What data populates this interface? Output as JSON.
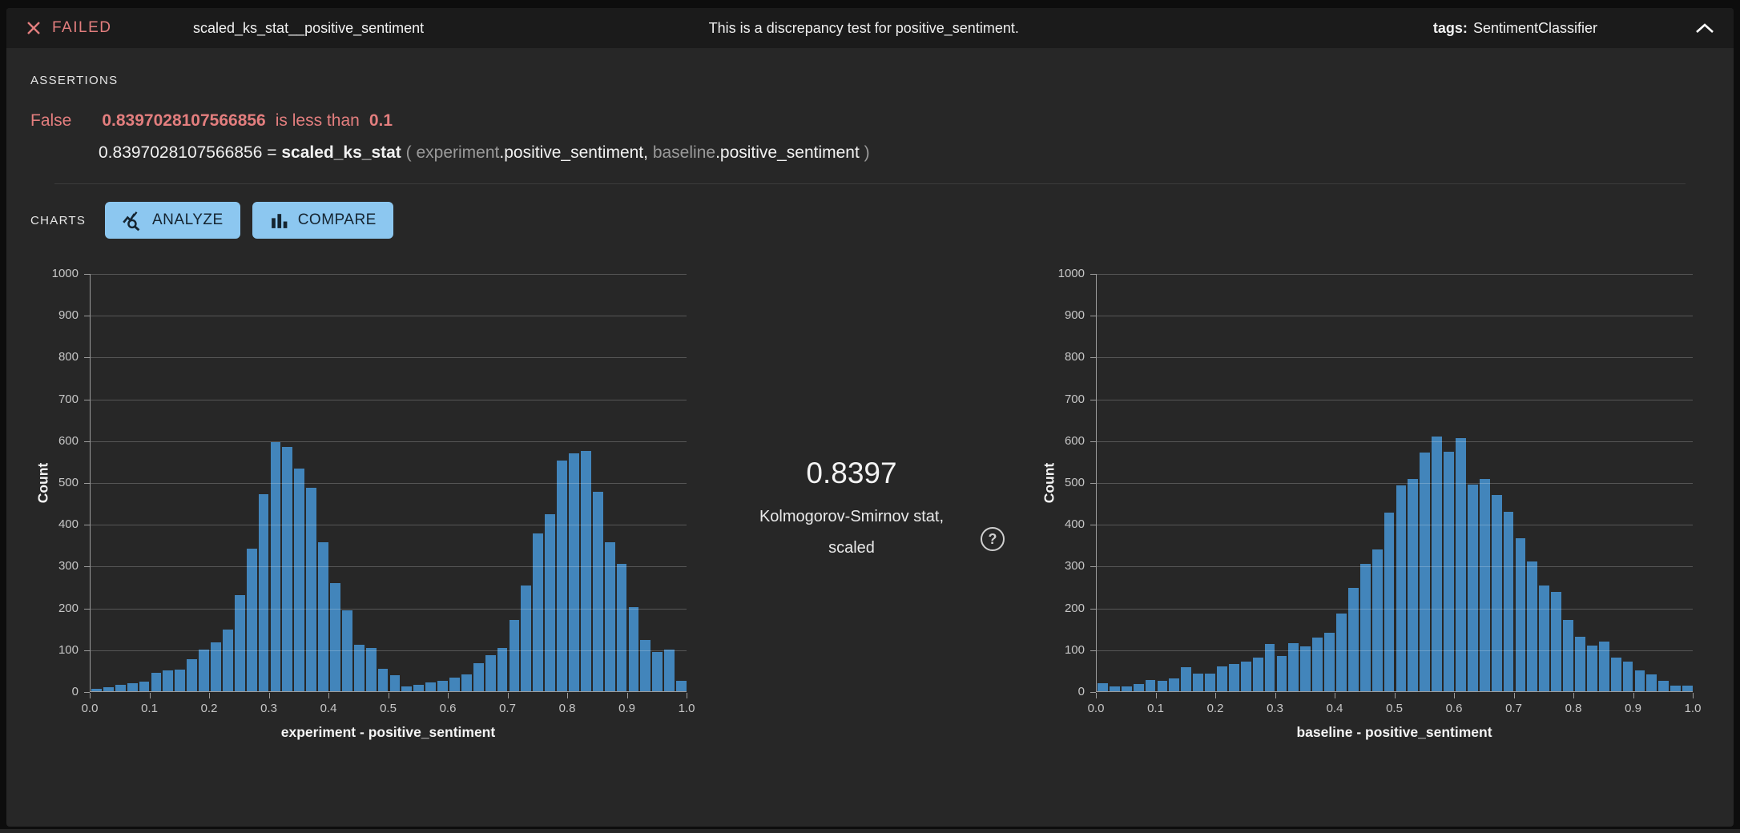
{
  "header": {
    "status": "FAILED",
    "test_name": "scaled_ks_stat__positive_sentiment",
    "description": "This is a discrepancy test for positive_sentiment.",
    "tags_label": "tags:",
    "tags_value": "SentimentClassifier"
  },
  "assertions": {
    "section_label": "ASSERTIONS",
    "result": "False",
    "value": "0.8397028107566856",
    "comparison": "is less than",
    "threshold": "0.1",
    "expression": {
      "value": "0.8397028107566856",
      "equals": "=",
      "function": "scaled_ks_stat",
      "open_paren": "(",
      "arg1_prefix": "experiment",
      "arg1_field": ".positive_sentiment,",
      "arg2_prefix": "baseline",
      "arg2_field": ".positive_sentiment",
      "close_paren": ")"
    }
  },
  "charts_section": {
    "section_label": "CHARTS",
    "analyze_button": "ANALYZE",
    "compare_button": "COMPARE"
  },
  "stat": {
    "value": "0.8397",
    "caption_line1": "Kolmogorov-Smirnov stat,",
    "caption_line2": "scaled",
    "help_glyph": "?"
  },
  "colors": {
    "failed_accent": "#e37e7e",
    "bar_fill": "#4285bb",
    "button_bg": "#8cc7f0",
    "button_text": "#152430"
  },
  "chart_data": [
    {
      "type": "bar",
      "title": "",
      "xlabel": "experiment - positive_sentiment",
      "ylabel": "Count",
      "ylim": [
        0,
        1000
      ],
      "xlim": [
        0,
        1
      ],
      "grid": true,
      "legend": "none",
      "y_ticks": [
        0,
        100,
        200,
        300,
        400,
        500,
        600,
        700,
        800,
        900,
        1000
      ],
      "x_tick_labels": [
        "0.0",
        "0.1",
        "0.2",
        "0.3",
        "0.4",
        "0.5",
        "0.6",
        "0.7",
        "0.8",
        "0.9",
        "1.0"
      ],
      "bins": {
        "start": 0.0,
        "end": 1.0,
        "width": 0.02
      },
      "values": [
        5,
        10,
        15,
        20,
        23,
        44,
        49,
        52,
        76,
        100,
        117,
        147,
        230,
        341,
        472,
        596,
        585,
        532,
        486,
        356,
        258,
        194,
        111,
        104,
        54,
        38,
        12,
        16,
        22,
        25,
        32,
        40,
        68,
        87,
        103,
        170,
        253,
        378,
        423,
        551,
        569,
        575,
        477,
        356,
        304,
        202,
        123,
        94,
        99,
        24
      ]
    },
    {
      "type": "bar",
      "title": "",
      "xlabel": "baseline - positive_sentiment",
      "ylabel": "Count",
      "ylim": [
        0,
        1000
      ],
      "xlim": [
        0,
        1
      ],
      "grid": true,
      "legend": "none",
      "y_ticks": [
        0,
        100,
        200,
        300,
        400,
        500,
        600,
        700,
        800,
        900,
        1000
      ],
      "x_tick_labels": [
        "0.0",
        "0.1",
        "0.2",
        "0.3",
        "0.4",
        "0.5",
        "0.6",
        "0.7",
        "0.8",
        "0.9",
        "1.0"
      ],
      "bins": {
        "start": 0.0,
        "end": 1.0,
        "width": 0.02
      },
      "values": [
        20,
        12,
        12,
        17,
        27,
        25,
        30,
        58,
        42,
        43,
        60,
        65,
        70,
        80,
        113,
        85,
        115,
        108,
        128,
        140,
        185,
        247,
        305,
        340,
        428,
        492,
        508,
        570,
        610,
        572,
        605,
        495,
        508,
        470,
        430,
        365,
        310,
        252,
        238,
        170,
        130,
        110,
        118,
        80,
        70,
        50,
        40,
        25,
        13,
        13
      ]
    }
  ]
}
